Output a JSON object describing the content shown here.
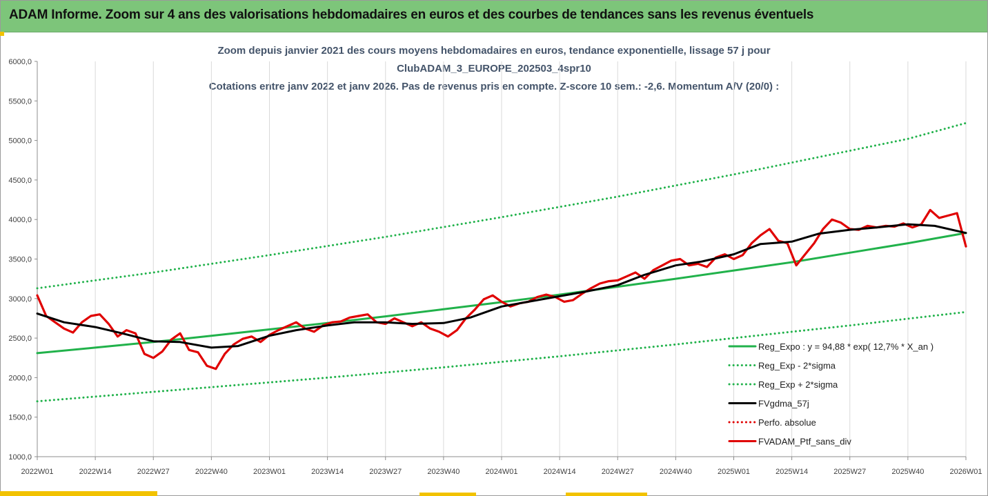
{
  "window": {
    "header_title": "ADAM Informe. Zoom sur 4 ans des valorisations hebdomadaires en euros et des courbes de tendances sans les revenus éventuels"
  },
  "chart_data": {
    "type": "line",
    "title_lines": [
      "Zoom depuis janvier 2021 des cours moyens hebdomadaires  en euros, tendance exponentielle, lissage 57 j pour",
      "ClubADAM_3_EUROPE_202503_4spr10",
      "Cotations entre janv 2022 et janv 2026. Pas de revenus pris en compte. Z-score 10 sem.: -2,6. Momentum A/V (20/0) :"
    ],
    "xlabel": "",
    "ylabel": "",
    "ylim": [
      1000,
      6000
    ],
    "yticks": [
      "1000,0",
      "1500,0",
      "2000,0",
      "2500,0",
      "3000,0",
      "3500,0",
      "4000,0",
      "4500,0",
      "5000,0",
      "5500,0",
      "6000,0"
    ],
    "xtick_labels": [
      "2022W01",
      "2022W14",
      "2022W27",
      "2022W40",
      "2023W01",
      "2023W14",
      "2023W27",
      "2023W40",
      "2024W01",
      "2024W14",
      "2024W27",
      "2024W40",
      "2025W01",
      "2025W14",
      "2025W27",
      "2025W40",
      "2026W01"
    ],
    "grid": "vertical",
    "legend_position": "bottom-right",
    "series": [
      {
        "name": "Reg_Expo : y = 94,88 * exp( 12,7% *  X_an )",
        "color": "#21b24b",
        "style": "solid",
        "x": [
          0,
          13,
          26,
          39,
          52,
          65,
          78,
          91,
          104,
          117,
          130,
          143,
          156,
          169,
          182,
          195,
          208
        ],
        "values": [
          2310,
          2380,
          2450,
          2530,
          2610,
          2690,
          2775,
          2865,
          2955,
          3050,
          3150,
          3250,
          3355,
          3460,
          3580,
          3700,
          3830
        ]
      },
      {
        "name": "Reg_Exp - 2*sigma",
        "color": "#21b24b",
        "style": "dotted",
        "x": [
          0,
          13,
          26,
          39,
          52,
          65,
          78,
          91,
          104,
          117,
          130,
          143,
          156,
          169,
          182,
          195,
          208
        ],
        "values": [
          1700,
          1760,
          1820,
          1880,
          1940,
          2000,
          2065,
          2130,
          2200,
          2270,
          2345,
          2420,
          2500,
          2580,
          2660,
          2745,
          2830
        ]
      },
      {
        "name": "Reg_Exp + 2*sigma",
        "color": "#21b24b",
        "style": "dotted",
        "x": [
          0,
          13,
          26,
          39,
          52,
          65,
          78,
          91,
          104,
          117,
          130,
          143,
          156,
          169,
          182,
          195,
          208
        ],
        "values": [
          3130,
          3230,
          3330,
          3440,
          3550,
          3665,
          3780,
          3905,
          4030,
          4160,
          4290,
          4430,
          4570,
          4720,
          4870,
          5020,
          5220
        ]
      },
      {
        "name": "FVgdma_57j",
        "color": "#000000",
        "style": "solid",
        "x": [
          0,
          6,
          13,
          19,
          26,
          32,
          39,
          45,
          52,
          58,
          65,
          71,
          78,
          84,
          91,
          97,
          104,
          110,
          117,
          123,
          130,
          136,
          143,
          149,
          156,
          162,
          169,
          175,
          182,
          188,
          195,
          201,
          208
        ],
        "values": [
          2810,
          2700,
          2640,
          2560,
          2460,
          2450,
          2380,
          2400,
          2530,
          2600,
          2660,
          2700,
          2700,
          2680,
          2690,
          2760,
          2900,
          2960,
          3030,
          3090,
          3170,
          3300,
          3420,
          3470,
          3560,
          3690,
          3720,
          3820,
          3870,
          3900,
          3940,
          3920,
          3830
        ]
      },
      {
        "name": "Perfo. absolue",
        "color": "#e00000",
        "style": "dotted",
        "x": [],
        "values": []
      },
      {
        "name": "FVADAM_Ptf_sans_div",
        "color": "#e00000",
        "style": "solid",
        "x": [
          0,
          2,
          4,
          6,
          8,
          10,
          12,
          14,
          16,
          18,
          20,
          22,
          24,
          26,
          28,
          30,
          32,
          34,
          36,
          38,
          40,
          42,
          44,
          46,
          48,
          50,
          52,
          54,
          56,
          58,
          60,
          62,
          64,
          66,
          68,
          70,
          72,
          74,
          76,
          78,
          80,
          82,
          84,
          86,
          88,
          90,
          92,
          94,
          96,
          98,
          100,
          102,
          104,
          106,
          108,
          110,
          112,
          114,
          116,
          118,
          120,
          122,
          124,
          126,
          128,
          130,
          132,
          134,
          136,
          138,
          140,
          142,
          144,
          146,
          148,
          150,
          152,
          154,
          156,
          158,
          160,
          162,
          164,
          166,
          168,
          170,
          172,
          174,
          176,
          178,
          180,
          182,
          184,
          186,
          188,
          190,
          192,
          194,
          196,
          198,
          200,
          202,
          204,
          206,
          208
        ],
        "values": [
          3040,
          2780,
          2700,
          2620,
          2570,
          2700,
          2780,
          2800,
          2680,
          2520,
          2600,
          2560,
          2300,
          2250,
          2330,
          2480,
          2560,
          2350,
          2320,
          2150,
          2110,
          2300,
          2420,
          2490,
          2520,
          2450,
          2540,
          2600,
          2650,
          2700,
          2620,
          2580,
          2660,
          2700,
          2710,
          2760,
          2780,
          2800,
          2700,
          2680,
          2750,
          2700,
          2650,
          2700,
          2620,
          2580,
          2520,
          2600,
          2750,
          2860,
          2990,
          3040,
          2960,
          2900,
          2940,
          2960,
          3020,
          3050,
          3020,
          2960,
          2980,
          3060,
          3130,
          3190,
          3220,
          3230,
          3280,
          3330,
          3250,
          3360,
          3420,
          3480,
          3500,
          3420,
          3440,
          3400,
          3520,
          3560,
          3500,
          3550,
          3700,
          3800,
          3880,
          3730,
          3700,
          3420,
          3560,
          3700,
          3880,
          4000,
          3960,
          3880,
          3870,
          3920,
          3900,
          3920,
          3910,
          3950,
          3900,
          3940,
          4120,
          4020,
          4050,
          4080,
          3660
        ]
      }
    ]
  }
}
